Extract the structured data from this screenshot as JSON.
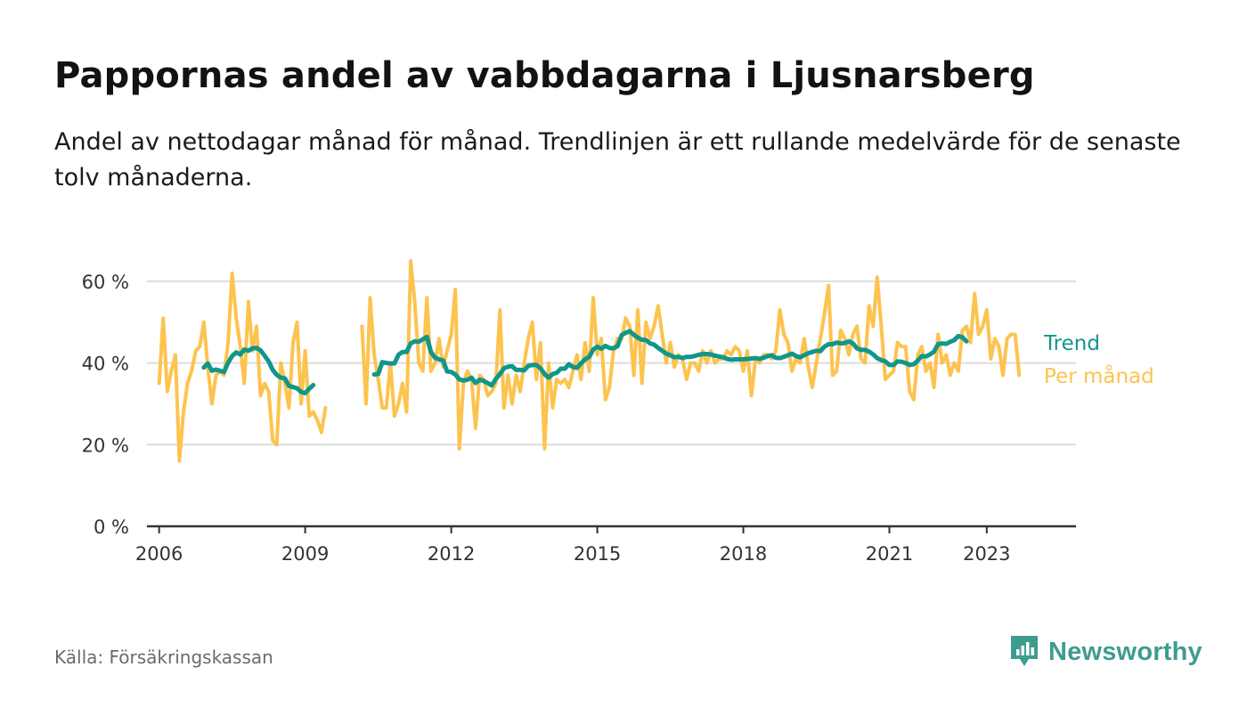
{
  "header": {
    "title": "Pappornas andel av vabbdagarna i Ljusnarsberg",
    "subtitle": "Andel av nettodagar månad för månad. Trendlinjen är ett rullande medelvärde för de senaste tolv månaderna."
  },
  "footer": {
    "source": "Källa: Försäkringskassan",
    "brand": "Newsworthy"
  },
  "colors": {
    "monthly": "#FDC34F",
    "trend": "#11968A",
    "grid": "#DDDDDD",
    "axis": "#333333",
    "brand": "#3E9C8F"
  },
  "chart_data": {
    "type": "line",
    "title": "Pappornas andel av vabbdagarna i Ljusnarsberg",
    "xlim": [
      2005.75,
      2024.833
    ],
    "ylim": [
      0,
      65
    ],
    "x_ticks": [
      2006,
      2009,
      2012,
      2015,
      2018,
      2021,
      2023
    ],
    "y_ticks": [
      0,
      20,
      40,
      60
    ],
    "y_tick_labels": [
      "0 %",
      "20 %",
      "40 %",
      "60 %"
    ],
    "grid": true,
    "legend_placement": "right-end-labels",
    "series": [
      {
        "name": "Per månad",
        "color": "#FDC34F",
        "start": [
          2006,
          1
        ],
        "values": [
          35,
          51,
          33,
          38,
          42,
          16,
          28,
          35,
          38,
          43,
          44,
          50,
          39,
          30,
          37,
          38,
          37,
          45,
          62,
          51,
          44,
          35,
          55,
          43,
          49,
          32,
          35,
          33,
          21,
          20,
          40,
          35,
          29,
          45,
          50,
          30,
          43,
          27,
          28,
          26,
          23,
          29,
          null,
          null,
          null,
          null,
          null,
          null,
          null,
          null,
          49,
          30,
          56,
          42,
          36,
          29,
          29,
          40,
          27,
          30,
          35,
          28,
          65,
          55,
          40,
          38,
          56,
          38,
          40,
          46,
          39,
          43,
          47,
          58,
          19,
          35,
          38,
          36,
          24,
          37,
          36,
          32,
          33,
          35,
          53,
          29,
          37,
          30,
          37,
          33,
          40,
          46,
          50,
          36,
          45,
          19,
          40,
          29,
          36,
          35,
          36,
          34,
          38,
          42,
          36,
          45,
          38,
          56,
          42,
          46,
          31,
          34,
          43,
          46,
          46,
          51,
          49,
          37,
          53,
          35,
          50,
          46,
          49,
          54,
          47,
          40,
          45,
          39,
          42,
          41,
          36,
          40,
          40,
          38,
          43,
          40,
          43,
          40,
          41,
          41,
          43,
          42,
          44,
          43,
          38,
          43,
          32,
          41,
          40,
          42,
          42,
          41,
          43,
          53,
          47,
          45,
          38,
          41,
          40,
          46,
          39,
          34,
          40,
          46,
          52,
          59,
          37,
          38,
          48,
          46,
          42,
          47,
          49,
          41,
          40,
          54,
          49,
          61,
          49,
          36,
          37,
          38,
          45,
          44,
          44,
          33,
          31,
          42,
          44,
          38,
          40,
          34,
          47,
          40,
          42,
          37,
          40,
          38,
          48,
          49,
          45,
          57,
          47,
          49,
          53,
          41,
          46,
          44,
          37,
          46,
          47,
          47,
          37
        ]
      },
      {
        "name": "Trend",
        "color": "#11968A",
        "start": [
          2006,
          12
        ],
        "values": [
          38.9,
          39.9,
          38.1,
          38.4,
          38.1,
          37.8,
          40.1,
          41.7,
          42.6,
          42.1,
          43.3,
          43.0,
          43.6,
          43.7,
          43.1,
          41.8,
          40.4,
          38.3,
          37.1,
          36.4,
          36.2,
          34.4,
          34.1,
          33.8,
          32.9,
          32.6,
          33.7,
          34.6,
          null,
          null,
          null,
          null,
          null,
          null,
          null,
          null,
          null,
          null,
          null,
          null,
          null,
          null,
          37.2,
          37.3,
          40.2,
          40.0,
          39.9,
          39.9,
          42.0,
          42.7,
          42.7,
          44.8,
          45.3,
          45.2,
          45.8,
          46.4,
          42.7,
          41.3,
          40.9,
          40.6,
          37.9,
          37.8,
          37.2,
          36.0,
          35.7,
          35.9,
          36.4,
          35.1,
          35.9,
          35.6,
          35.1,
          34.5,
          36.1,
          37.3,
          38.7,
          39.1,
          39.2,
          38.3,
          38.3,
          38.2,
          39.3,
          39.5,
          39.5,
          38.7,
          37.3,
          36.4,
          37.3,
          37.6,
          38.6,
          38.6,
          39.7,
          39.0,
          38.8,
          39.9,
          40.9,
          41.5,
          43.3,
          44.0,
          43.5,
          44.2,
          43.7,
          43.6,
          44.1,
          46.8,
          47.4,
          47.8,
          46.9,
          46.2,
          45.7,
          45.6,
          44.8,
          44.5,
          43.7,
          43.0,
          42.3,
          41.9,
          41.4,
          41.5,
          41.2,
          41.5,
          41.5,
          41.7,
          42.0,
          42.2,
          42.2,
          42.1,
          41.8,
          41.6,
          41.4,
          41.0,
          40.8,
          40.9,
          40.9,
          40.9,
          41.0,
          41.1,
          41.2,
          41.0,
          41.3,
          41.7,
          41.9,
          41.3,
          41.2,
          41.5,
          41.9,
          42.3,
          41.7,
          41.4,
          41.9,
          42.4,
          42.7,
          43.0,
          42.9,
          44.0,
          44.6,
          44.6,
          45.0,
          44.8,
          44.9,
          45.3,
          44.8,
          43.6,
          43.2,
          43.2,
          42.8,
          42.1,
          41.2,
          40.7,
          40.4,
          39.5,
          39.5,
          40.4,
          40.3,
          40.0,
          39.5,
          39.7,
          40.6,
          41.7,
          41.6,
          42.1,
          42.8,
          44.6,
          44.8,
          44.7,
          45.2,
          45.6,
          46.6,
          46.3,
          45.3
        ]
      }
    ],
    "end_labels": [
      "Trend",
      "Per månad"
    ]
  }
}
